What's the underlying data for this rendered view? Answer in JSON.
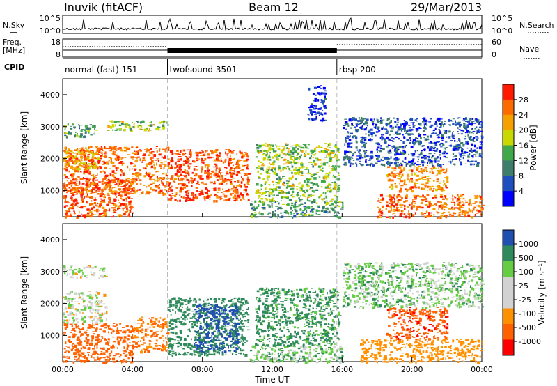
{
  "header": {
    "station": "Inuvik (fitACF)",
    "beam": "Beam 12",
    "date": "29/Mar/2013"
  },
  "top_panel": {
    "left_label": "N.Sky",
    "right_label": "N.Search",
    "left_ticks": [
      "10^5",
      "10^0"
    ],
    "right_ticks": [
      "10^5",
      "10^0"
    ]
  },
  "freq_panel": {
    "left_label_1": "Freq.",
    "left_label_2": "[MHz]",
    "left_ticks": [
      "18",
      "8"
    ],
    "right_label": "Nave",
    "right_ticks": [
      "60",
      "0"
    ]
  },
  "cpid_panel": {
    "label": "CPID",
    "modes": [
      {
        "name": "normal (fast) 151",
        "start_h": 0
      },
      {
        "name": "twofsound 3501",
        "start_h": 6
      },
      {
        "name": "rbsp 200",
        "start_h": 15.7
      }
    ]
  },
  "colors": {
    "power": [
      "#0000ff",
      "#1f4fbf",
      "#3d7d6a",
      "#3fa84a",
      "#c8d800",
      "#f6a000",
      "#ff6a00",
      "#ff1a00"
    ],
    "velocity": [
      "#ff0000",
      "#ff6000",
      "#ff9000",
      "#d2d2d2",
      "#d2d2d2",
      "#66cc44",
      "#2e8a5a",
      "#1f4faf"
    ]
  },
  "chart_data": [
    {
      "type": "heatmap",
      "title": "Power",
      "ylabel": "Slant Range [km]",
      "xlabel": "",
      "ylim": [
        180,
        4500
      ],
      "xlim": [
        0,
        24
      ],
      "yticks": [
        "4000",
        "3000",
        "2000",
        "1000"
      ],
      "colorbar_label": "Power [dB]",
      "colorbar_ticks": [
        "28",
        "24",
        "20",
        "16",
        "12",
        "8",
        "4"
      ],
      "regions": [
        {
          "t0": 0.0,
          "t1": 4.0,
          "r0": 180,
          "r1": 1400,
          "level": 28
        },
        {
          "t0": 0.0,
          "t1": 6.0,
          "r0": 900,
          "r1": 2400,
          "level": 26
        },
        {
          "t0": 6.0,
          "t1": 10.6,
          "r0": 700,
          "r1": 2300,
          "level": 28
        },
        {
          "t0": 0.0,
          "t1": 2.0,
          "r0": 1700,
          "r1": 2300,
          "level": 22
        },
        {
          "t0": 0.0,
          "t1": 2.0,
          "r0": 2700,
          "r1": 3100,
          "level": 12
        },
        {
          "t0": 2.5,
          "t1": 6.0,
          "r0": 2900,
          "r1": 3200,
          "level": 16
        },
        {
          "t0": 10.7,
          "t1": 16.0,
          "r0": 180,
          "r1": 700,
          "level": 12
        },
        {
          "t0": 11.0,
          "t1": 15.8,
          "r0": 700,
          "r1": 2500,
          "level": 16
        },
        {
          "t0": 14.0,
          "t1": 15.0,
          "r0": 3200,
          "r1": 4300,
          "level": 4
        },
        {
          "t0": 18.0,
          "t1": 24.0,
          "r0": 180,
          "r1": 900,
          "level": 26
        },
        {
          "t0": 18.5,
          "t1": 22.0,
          "r0": 1000,
          "r1": 1800,
          "level": 24
        },
        {
          "t0": 16.0,
          "t1": 24.0,
          "r0": 1800,
          "r1": 3300,
          "level": 6
        }
      ]
    },
    {
      "type": "heatmap",
      "title": "Velocity",
      "ylabel": "Slant Range [km]",
      "xlabel": "Time UT",
      "ylim": [
        180,
        4500
      ],
      "xlim": [
        0,
        24
      ],
      "yticks": [
        "4000",
        "3000",
        "2000",
        "1000"
      ],
      "xticks": [
        "00:00",
        "04:00",
        "08:00",
        "12:00",
        "16:00",
        "20:00",
        "00:00"
      ],
      "colorbar_label": "Velocity [m s⁻¹]",
      "colorbar_ticks": [
        "1000",
        "500",
        "100",
        "25",
        "-25",
        "-100",
        "-500",
        "-1000"
      ],
      "regions": [
        {
          "t0": 0.0,
          "t1": 4.0,
          "r0": 180,
          "r1": 1400,
          "level": -500
        },
        {
          "t0": 0.0,
          "t1": 2.5,
          "r0": 1400,
          "r1": 2400,
          "level": 0
        },
        {
          "t0": 4.0,
          "t1": 6.0,
          "r0": 500,
          "r1": 1600,
          "level": -300
        },
        {
          "t0": 6.0,
          "t1": 10.6,
          "r0": 400,
          "r1": 2200,
          "level": 200
        },
        {
          "t0": 7.5,
          "t1": 10.0,
          "r0": 500,
          "r1": 2000,
          "level": 800
        },
        {
          "t0": 0.0,
          "t1": 2.5,
          "r0": 2800,
          "r1": 3200,
          "level": 0
        },
        {
          "t0": 10.7,
          "t1": 16.0,
          "r0": 180,
          "r1": 700,
          "level": 60
        },
        {
          "t0": 11.0,
          "t1": 15.8,
          "r0": 700,
          "r1": 2500,
          "level": 150
        },
        {
          "t0": 17.0,
          "t1": 24.0,
          "r0": 180,
          "r1": 900,
          "level": -200
        },
        {
          "t0": 18.5,
          "t1": 22.0,
          "r0": 900,
          "r1": 1900,
          "level": -700
        },
        {
          "t0": 16.0,
          "t1": 24.0,
          "r0": 1900,
          "r1": 3300,
          "level": 60
        }
      ]
    }
  ]
}
